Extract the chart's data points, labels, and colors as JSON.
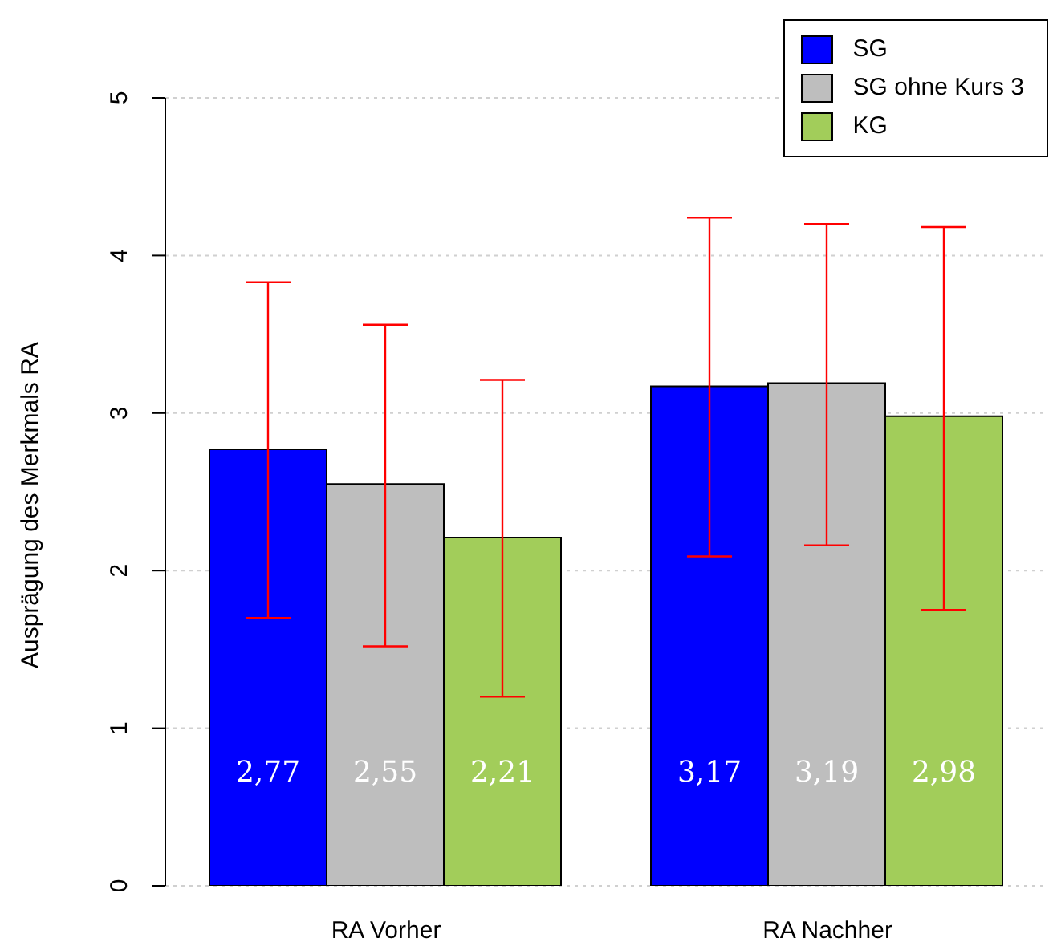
{
  "chart_data": {
    "type": "bar",
    "ylabel": "Ausprägung des Merkmals RA",
    "categories": [
      "RA Vorher",
      "RA Nachher"
    ],
    "series": [
      {
        "name": "SG",
        "color": "#0000ff",
        "values": [
          2.77,
          3.17
        ],
        "value_labels": [
          "2,77",
          "3,17"
        ],
        "errors": [
          [
            1.7,
            3.83
          ],
          [
            2.09,
            4.24
          ]
        ]
      },
      {
        "name": "SG ohne Kurs 3",
        "color": "#bebebe",
        "values": [
          2.55,
          3.19
        ],
        "value_labels": [
          "2,55",
          "3,19"
        ],
        "errors": [
          [
            1.52,
            3.56
          ],
          [
            2.16,
            4.2
          ]
        ]
      },
      {
        "name": "KG",
        "color": "#a2cd5a",
        "values": [
          2.21,
          2.98
        ],
        "value_labels": [
          "2,21",
          "2,98"
        ],
        "errors": [
          [
            1.2,
            3.21
          ],
          [
            1.75,
            4.18
          ]
        ]
      }
    ],
    "ylim": [
      0,
      5
    ],
    "yticks": [
      0,
      1,
      2,
      3,
      4,
      5
    ],
    "grid": "y",
    "legend": "top right"
  }
}
